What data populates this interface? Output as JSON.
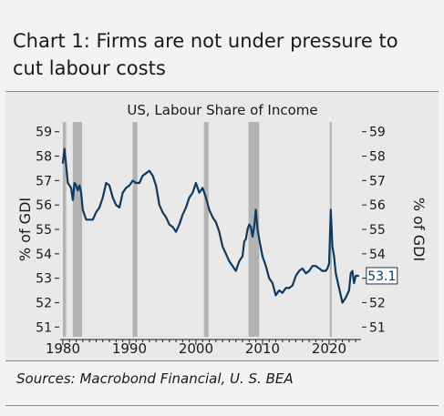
{
  "header": {
    "title": "Chart 1: Firms are not under pressure to cut labour costs"
  },
  "footer": {
    "source": "Sources: Macrobond Financial, U. S. BEA"
  },
  "chart_data": {
    "type": "line",
    "title": "US, Labour Share of Income",
    "ylabel_left": "% of GDI",
    "ylabel_right": "% of GDI",
    "ylim": [
      50.6,
      59.4
    ],
    "xlim": [
      1979.6,
      2024.8
    ],
    "yticks": [
      51,
      52,
      53,
      54,
      55,
      56,
      57,
      58,
      59
    ],
    "xticks": [
      1980,
      1990,
      2000,
      2010,
      2020
    ],
    "last_value_label": "53.1",
    "colors": {
      "line": "#0f3a5e",
      "recession": "#b3b3b3",
      "label_border": "#0f3a5e"
    },
    "recessions": [
      [
        1980.0,
        1980.5
      ],
      [
        1981.5,
        1982.9
      ],
      [
        1990.5,
        1991.2
      ],
      [
        2001.2,
        2001.9
      ],
      [
        2007.9,
        2009.5
      ],
      [
        2020.1,
        2020.4
      ]
    ],
    "series": [
      {
        "x": [
          1980.0,
          1980.25,
          1980.5,
          1980.75,
          1981.0,
          1981.25,
          1981.5,
          1981.75,
          1982.0,
          1982.25,
          1982.5,
          1982.75,
          1983.0,
          1983.5,
          1984.0,
          1984.5,
          1985.0,
          1985.5,
          1986.0,
          1986.5,
          1987.0,
          1987.5,
          1988.0,
          1988.5,
          1989.0,
          1989.5,
          1990.0,
          1990.5,
          1991.0,
          1991.5,
          1992.0,
          1992.5,
          1993.0,
          1993.5,
          1994.0,
          1994.5,
          1995.0,
          1995.5,
          1996.0,
          1996.5,
          1997.0,
          1997.5,
          1998.0,
          1998.5,
          1999.0,
          1999.5,
          2000.0,
          2000.5,
          2001.0,
          2001.5,
          2002.0,
          2002.5,
          2003.0,
          2003.5,
          2004.0,
          2004.5,
          2005.0,
          2005.5,
          2006.0,
          2006.5,
          2007.0,
          2007.25,
          2007.5,
          2007.75,
          2008.0,
          2008.25,
          2008.5,
          2008.75,
          2009.0,
          2009.25,
          2009.5,
          2010.0,
          2010.5,
          2011.0,
          2011.5,
          2012.0,
          2012.5,
          2013.0,
          2013.5,
          2014.0,
          2014.5,
          2015.0,
          2015.5,
          2016.0,
          2016.5,
          2017.0,
          2017.5,
          2018.0,
          2018.5,
          2019.0,
          2019.5,
          2019.75,
          2020.0,
          2020.25,
          2020.5,
          2020.75,
          2021.0,
          2021.5,
          2022.0,
          2022.5,
          2023.0,
          2023.25,
          2023.5,
          2023.75,
          2024.0,
          2024.5
        ],
        "y": [
          57.7,
          58.3,
          57.6,
          56.9,
          56.8,
          56.7,
          56.2,
          56.9,
          56.8,
          56.6,
          56.8,
          56.5,
          55.8,
          55.4,
          55.4,
          55.4,
          55.7,
          55.9,
          56.3,
          56.9,
          56.8,
          56.3,
          56.0,
          55.9,
          56.5,
          56.7,
          56.8,
          57.0,
          56.9,
          56.9,
          57.2,
          57.3,
          57.4,
          57.2,
          56.8,
          56.0,
          55.7,
          55.5,
          55.2,
          55.1,
          54.9,
          55.2,
          55.6,
          55.9,
          56.3,
          56.5,
          56.9,
          56.5,
          56.7,
          56.3,
          55.8,
          55.5,
          55.3,
          54.9,
          54.3,
          54.0,
          53.7,
          53.5,
          53.3,
          53.7,
          53.9,
          54.5,
          54.6,
          55.0,
          55.2,
          55.1,
          54.7,
          55.1,
          55.8,
          55.0,
          54.6,
          53.9,
          53.5,
          53.0,
          52.8,
          52.3,
          52.5,
          52.4,
          52.6,
          52.6,
          52.7,
          53.1,
          53.3,
          53.4,
          53.2,
          53.3,
          53.5,
          53.5,
          53.4,
          53.3,
          53.3,
          53.4,
          53.6,
          55.8,
          54.3,
          53.9,
          53.2,
          52.6,
          52.0,
          52.2,
          52.5,
          53.2,
          53.3,
          52.8,
          53.1,
          53.1
        ]
      }
    ]
  }
}
